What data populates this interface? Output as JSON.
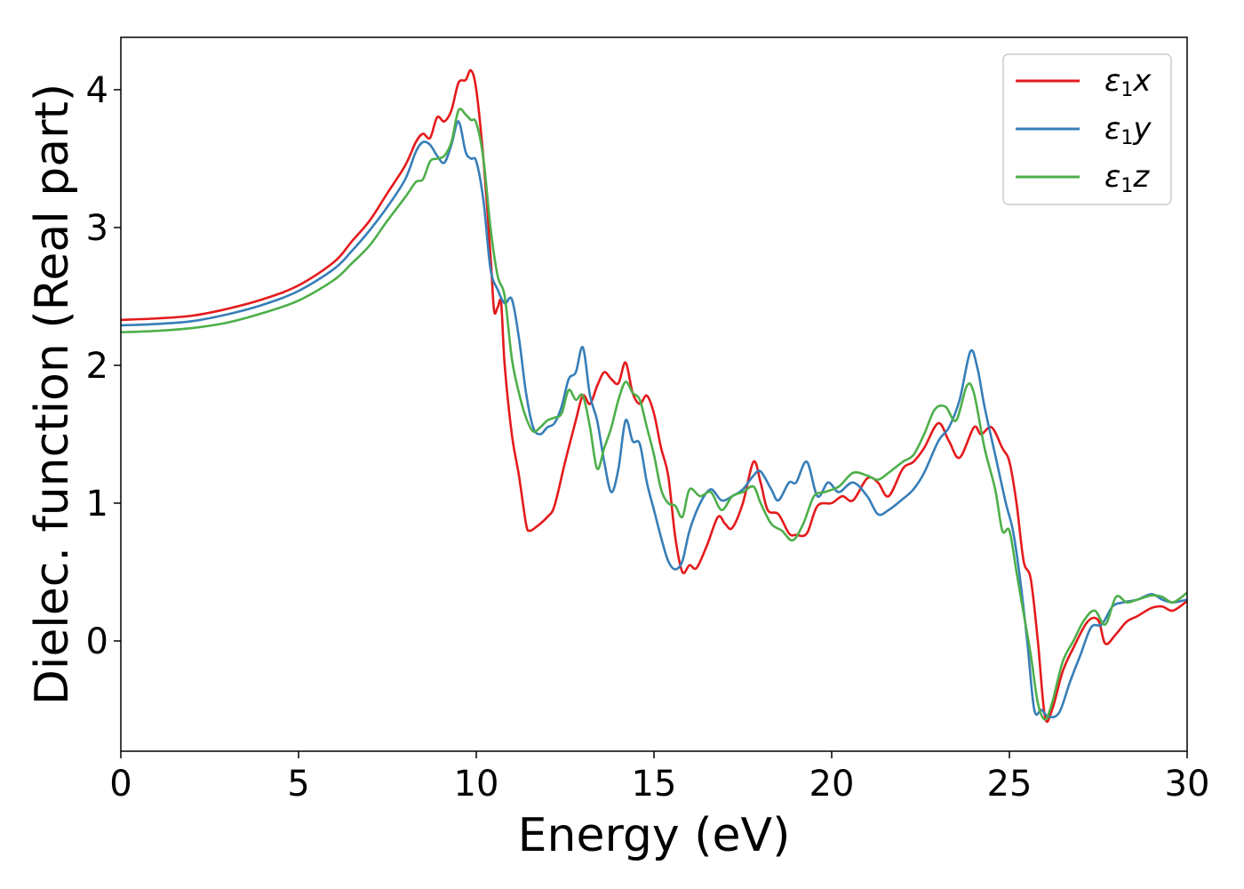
{
  "chart_data": {
    "type": "line",
    "xlabel": "Energy (eV)",
    "ylabel": "Dielec. function (Real part)",
    "xlim": [
      0,
      30
    ],
    "ylim": [
      -0.8,
      4.38
    ],
    "xticks": [
      0,
      5,
      10,
      15,
      20,
      25,
      30
    ],
    "yticks": [
      0,
      1,
      2,
      3,
      4
    ],
    "grid": false,
    "legend_position": "top-right",
    "series": [
      {
        "name_main": "ε",
        "name_sub": "1",
        "name_suffix": "x",
        "color": "#e41a1c",
        "points": [
          [
            0,
            2.33
          ],
          [
            1,
            2.34
          ],
          [
            2,
            2.36
          ],
          [
            3,
            2.41
          ],
          [
            4,
            2.48
          ],
          [
            5,
            2.58
          ],
          [
            6,
            2.75
          ],
          [
            6.5,
            2.9
          ],
          [
            7,
            3.05
          ],
          [
            7.5,
            3.25
          ],
          [
            8,
            3.45
          ],
          [
            8.3,
            3.62
          ],
          [
            8.5,
            3.68
          ],
          [
            8.7,
            3.65
          ],
          [
            8.9,
            3.8
          ],
          [
            9.1,
            3.77
          ],
          [
            9.3,
            3.85
          ],
          [
            9.5,
            4.05
          ],
          [
            9.7,
            4.07
          ],
          [
            9.85,
            4.14
          ],
          [
            10,
            4.0
          ],
          [
            10.2,
            3.5
          ],
          [
            10.4,
            2.8
          ],
          [
            10.5,
            2.4
          ],
          [
            10.6,
            2.42
          ],
          [
            10.7,
            2.45
          ],
          [
            10.8,
            2.0
          ],
          [
            11,
            1.5
          ],
          [
            11.2,
            1.2
          ],
          [
            11.4,
            0.85
          ],
          [
            11.5,
            0.8
          ],
          [
            11.7,
            0.83
          ],
          [
            12,
            0.9
          ],
          [
            12.2,
            0.98
          ],
          [
            12.5,
            1.3
          ],
          [
            12.8,
            1.6
          ],
          [
            13,
            1.78
          ],
          [
            13.2,
            1.72
          ],
          [
            13.4,
            1.85
          ],
          [
            13.6,
            1.95
          ],
          [
            13.8,
            1.9
          ],
          [
            14,
            1.87
          ],
          [
            14.2,
            2.02
          ],
          [
            14.4,
            1.8
          ],
          [
            14.6,
            1.72
          ],
          [
            14.8,
            1.78
          ],
          [
            15,
            1.65
          ],
          [
            15.2,
            1.4
          ],
          [
            15.4,
            1.2
          ],
          [
            15.6,
            0.75
          ],
          [
            15.8,
            0.5
          ],
          [
            16,
            0.55
          ],
          [
            16.2,
            0.53
          ],
          [
            16.5,
            0.7
          ],
          [
            16.8,
            0.9
          ],
          [
            17,
            0.85
          ],
          [
            17.2,
            0.82
          ],
          [
            17.5,
            1.0
          ],
          [
            17.8,
            1.3
          ],
          [
            18,
            1.15
          ],
          [
            18.2,
            0.95
          ],
          [
            18.5,
            0.92
          ],
          [
            18.8,
            0.78
          ],
          [
            19,
            0.77
          ],
          [
            19.3,
            0.78
          ],
          [
            19.6,
            0.98
          ],
          [
            20,
            1.0
          ],
          [
            20.3,
            1.05
          ],
          [
            20.6,
            1.02
          ],
          [
            21,
            1.18
          ],
          [
            21.3,
            1.15
          ],
          [
            21.6,
            1.05
          ],
          [
            22,
            1.25
          ],
          [
            22.3,
            1.3
          ],
          [
            22.6,
            1.4
          ],
          [
            23,
            1.58
          ],
          [
            23.3,
            1.45
          ],
          [
            23.6,
            1.33
          ],
          [
            24,
            1.55
          ],
          [
            24.2,
            1.5
          ],
          [
            24.5,
            1.55
          ],
          [
            24.8,
            1.4
          ],
          [
            25,
            1.3
          ],
          [
            25.2,
            1.0
          ],
          [
            25.4,
            0.58
          ],
          [
            25.6,
            0.45
          ],
          [
            25.8,
            0.0
          ],
          [
            26,
            -0.55
          ],
          [
            26.2,
            -0.5
          ],
          [
            26.5,
            -0.22
          ],
          [
            26.8,
            -0.05
          ],
          [
            27.2,
            0.14
          ],
          [
            27.5,
            0.15
          ],
          [
            27.7,
            -0.02
          ],
          [
            28,
            0.05
          ],
          [
            28.3,
            0.14
          ],
          [
            28.6,
            0.18
          ],
          [
            29,
            0.24
          ],
          [
            29.3,
            0.25
          ],
          [
            29.6,
            0.22
          ],
          [
            30,
            0.29
          ]
        ]
      },
      {
        "name_main": "ε",
        "name_sub": "1",
        "name_suffix": "y",
        "color": "#377eb8",
        "points": [
          [
            0,
            2.29
          ],
          [
            1,
            2.3
          ],
          [
            2,
            2.32
          ],
          [
            3,
            2.37
          ],
          [
            4,
            2.44
          ],
          [
            5,
            2.54
          ],
          [
            6,
            2.7
          ],
          [
            6.5,
            2.83
          ],
          [
            7,
            2.98
          ],
          [
            7.5,
            3.15
          ],
          [
            8,
            3.35
          ],
          [
            8.3,
            3.55
          ],
          [
            8.5,
            3.62
          ],
          [
            8.7,
            3.6
          ],
          [
            8.9,
            3.52
          ],
          [
            9.1,
            3.47
          ],
          [
            9.3,
            3.6
          ],
          [
            9.5,
            3.77
          ],
          [
            9.7,
            3.55
          ],
          [
            9.85,
            3.5
          ],
          [
            10,
            3.48
          ],
          [
            10.2,
            3.2
          ],
          [
            10.4,
            2.7
          ],
          [
            10.6,
            2.55
          ],
          [
            10.8,
            2.45
          ],
          [
            11,
            2.48
          ],
          [
            11.2,
            2.2
          ],
          [
            11.4,
            1.8
          ],
          [
            11.6,
            1.55
          ],
          [
            11.8,
            1.5
          ],
          [
            12,
            1.55
          ],
          [
            12.2,
            1.58
          ],
          [
            12.4,
            1.7
          ],
          [
            12.6,
            1.9
          ],
          [
            12.8,
            1.95
          ],
          [
            13,
            2.13
          ],
          [
            13.2,
            1.78
          ],
          [
            13.4,
            1.6
          ],
          [
            13.6,
            1.3
          ],
          [
            13.8,
            1.08
          ],
          [
            14,
            1.25
          ],
          [
            14.2,
            1.6
          ],
          [
            14.4,
            1.45
          ],
          [
            14.6,
            1.43
          ],
          [
            14.8,
            1.15
          ],
          [
            15,
            0.95
          ],
          [
            15.2,
            0.75
          ],
          [
            15.4,
            0.58
          ],
          [
            15.6,
            0.52
          ],
          [
            15.8,
            0.58
          ],
          [
            16,
            0.8
          ],
          [
            16.3,
            1.0
          ],
          [
            16.6,
            1.1
          ],
          [
            16.9,
            1.02
          ],
          [
            17.2,
            1.05
          ],
          [
            17.5,
            1.1
          ],
          [
            17.8,
            1.2
          ],
          [
            18,
            1.23
          ],
          [
            18.3,
            1.1
          ],
          [
            18.5,
            1.02
          ],
          [
            18.8,
            1.15
          ],
          [
            19,
            1.15
          ],
          [
            19.3,
            1.3
          ],
          [
            19.6,
            1.05
          ],
          [
            19.9,
            1.15
          ],
          [
            20.2,
            1.08
          ],
          [
            20.6,
            1.15
          ],
          [
            21,
            1.05
          ],
          [
            21.3,
            0.92
          ],
          [
            21.6,
            0.95
          ],
          [
            22,
            1.03
          ],
          [
            22.3,
            1.1
          ],
          [
            22.6,
            1.22
          ],
          [
            23,
            1.45
          ],
          [
            23.3,
            1.55
          ],
          [
            23.6,
            1.75
          ],
          [
            23.9,
            2.1
          ],
          [
            24.1,
            1.98
          ],
          [
            24.3,
            1.7
          ],
          [
            24.6,
            1.35
          ],
          [
            24.9,
            1.0
          ],
          [
            25.1,
            0.8
          ],
          [
            25.3,
            0.45
          ],
          [
            25.5,
            0.0
          ],
          [
            25.7,
            -0.5
          ],
          [
            25.9,
            -0.5
          ],
          [
            26.1,
            -0.55
          ],
          [
            26.4,
            -0.52
          ],
          [
            26.7,
            -0.3
          ],
          [
            27,
            -0.1
          ],
          [
            27.3,
            0.1
          ],
          [
            27.6,
            0.12
          ],
          [
            27.9,
            0.25
          ],
          [
            28.2,
            0.28
          ],
          [
            28.6,
            0.3
          ],
          [
            29,
            0.34
          ],
          [
            29.3,
            0.3
          ],
          [
            29.6,
            0.28
          ],
          [
            30,
            0.3
          ]
        ]
      },
      {
        "name_main": "ε",
        "name_sub": "1",
        "name_suffix": "z",
        "color": "#4daf4a",
        "points": [
          [
            0,
            2.24
          ],
          [
            1,
            2.25
          ],
          [
            2,
            2.27
          ],
          [
            3,
            2.31
          ],
          [
            4,
            2.38
          ],
          [
            5,
            2.47
          ],
          [
            6,
            2.62
          ],
          [
            6.5,
            2.74
          ],
          [
            7,
            2.87
          ],
          [
            7.5,
            3.05
          ],
          [
            8,
            3.22
          ],
          [
            8.3,
            3.33
          ],
          [
            8.5,
            3.35
          ],
          [
            8.7,
            3.48
          ],
          [
            8.9,
            3.5
          ],
          [
            9.1,
            3.52
          ],
          [
            9.3,
            3.62
          ],
          [
            9.5,
            3.85
          ],
          [
            9.7,
            3.82
          ],
          [
            9.85,
            3.78
          ],
          [
            10,
            3.76
          ],
          [
            10.2,
            3.5
          ],
          [
            10.4,
            3.0
          ],
          [
            10.6,
            2.65
          ],
          [
            10.8,
            2.5
          ],
          [
            11,
            2.05
          ],
          [
            11.2,
            1.8
          ],
          [
            11.4,
            1.62
          ],
          [
            11.6,
            1.52
          ],
          [
            11.8,
            1.55
          ],
          [
            12,
            1.6
          ],
          [
            12.2,
            1.62
          ],
          [
            12.4,
            1.65
          ],
          [
            12.6,
            1.82
          ],
          [
            12.8,
            1.75
          ],
          [
            13,
            1.78
          ],
          [
            13.2,
            1.55
          ],
          [
            13.4,
            1.25
          ],
          [
            13.6,
            1.4
          ],
          [
            13.8,
            1.55
          ],
          [
            14,
            1.75
          ],
          [
            14.2,
            1.88
          ],
          [
            14.4,
            1.8
          ],
          [
            14.6,
            1.75
          ],
          [
            14.8,
            1.55
          ],
          [
            15,
            1.35
          ],
          [
            15.2,
            1.1
          ],
          [
            15.4,
            1.0
          ],
          [
            15.6,
            0.98
          ],
          [
            15.8,
            0.9
          ],
          [
            16,
            1.1
          ],
          [
            16.3,
            1.05
          ],
          [
            16.6,
            1.08
          ],
          [
            16.9,
            0.95
          ],
          [
            17.2,
            1.05
          ],
          [
            17.5,
            1.08
          ],
          [
            17.8,
            1.12
          ],
          [
            18,
            1.0
          ],
          [
            18.3,
            0.85
          ],
          [
            18.6,
            0.8
          ],
          [
            18.9,
            0.73
          ],
          [
            19.2,
            0.85
          ],
          [
            19.5,
            1.05
          ],
          [
            19.8,
            1.08
          ],
          [
            20.2,
            1.12
          ],
          [
            20.6,
            1.22
          ],
          [
            21,
            1.2
          ],
          [
            21.3,
            1.17
          ],
          [
            21.6,
            1.22
          ],
          [
            22,
            1.3
          ],
          [
            22.3,
            1.35
          ],
          [
            22.6,
            1.5
          ],
          [
            22.9,
            1.68
          ],
          [
            23.2,
            1.7
          ],
          [
            23.5,
            1.6
          ],
          [
            23.8,
            1.85
          ],
          [
            24,
            1.8
          ],
          [
            24.3,
            1.4
          ],
          [
            24.6,
            1.1
          ],
          [
            24.8,
            0.8
          ],
          [
            25,
            0.8
          ],
          [
            25.2,
            0.5
          ],
          [
            25.4,
            0.2
          ],
          [
            25.6,
            -0.1
          ],
          [
            25.8,
            -0.45
          ],
          [
            26,
            -0.57
          ],
          [
            26.2,
            -0.45
          ],
          [
            26.5,
            -0.15
          ],
          [
            26.8,
            0.0
          ],
          [
            27.1,
            0.15
          ],
          [
            27.4,
            0.22
          ],
          [
            27.7,
            0.12
          ],
          [
            28,
            0.32
          ],
          [
            28.3,
            0.28
          ],
          [
            28.6,
            0.3
          ],
          [
            29,
            0.33
          ],
          [
            29.3,
            0.32
          ],
          [
            29.6,
            0.28
          ],
          [
            30,
            0.35
          ]
        ]
      }
    ]
  }
}
